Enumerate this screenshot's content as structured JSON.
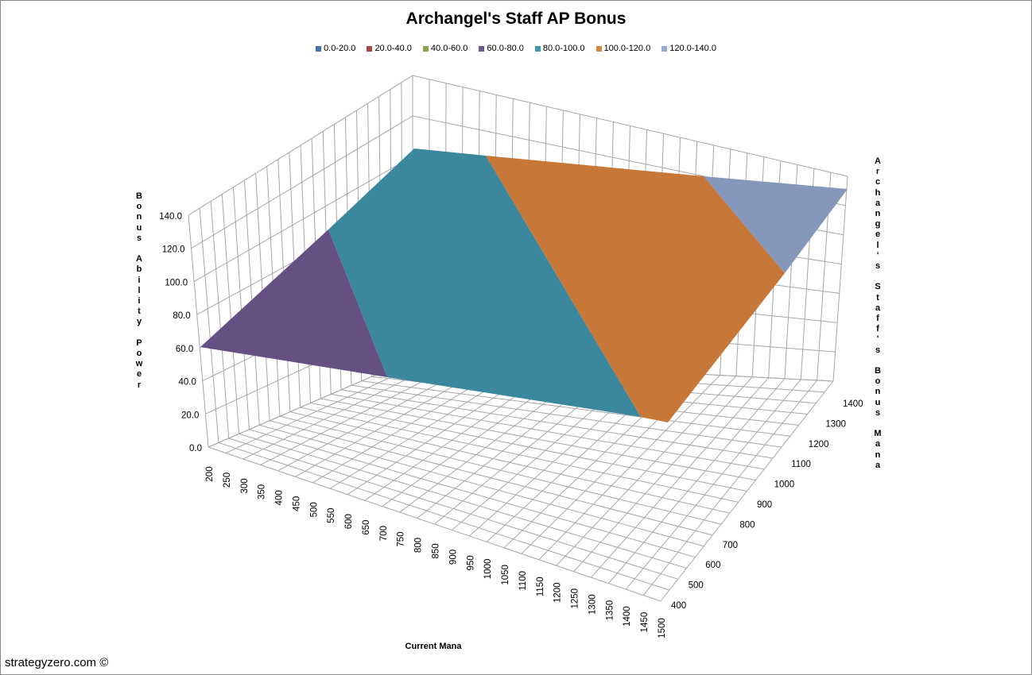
{
  "chart_data": {
    "type": "surface3d",
    "title": "Archangel's Staff AP Bonus",
    "xlabel": "Current Mana",
    "ylabel": "Archangel's Staff's Bonus Mana",
    "zlabel": "Bonus Ability Power",
    "x_ticks": [
      "200",
      "250",
      "300",
      "350",
      "400",
      "450",
      "500",
      "550",
      "600",
      "650",
      "700",
      "750",
      "800",
      "850",
      "900",
      "950",
      "1000",
      "1050",
      "1100",
      "1150",
      "1200",
      "1250",
      "1300",
      "1350",
      "1400",
      "1450",
      "1500"
    ],
    "y_ticks": [
      "400",
      "500",
      "600",
      "700",
      "800",
      "900",
      "1000",
      "1100",
      "1200",
      "1300",
      "1400"
    ],
    "z_ticks": [
      "0.0",
      "20.0",
      "40.0",
      "60.0",
      "80.0",
      "100.0",
      "120.0",
      "140.0"
    ],
    "zlim": [
      0,
      140
    ],
    "legend": [
      {
        "label": "0.0-20.0",
        "color": "#4572a7"
      },
      {
        "label": "20.0-40.0",
        "color": "#aa4643"
      },
      {
        "label": "40.0-60.0",
        "color": "#89a54e"
      },
      {
        "label": "60.0-80.0",
        "color": "#71588f"
      },
      {
        "label": "80.0-100.0",
        "color": "#4198af"
      },
      {
        "label": "100.0-120.0",
        "color": "#db843d"
      },
      {
        "label": "120.0-140.0",
        "color": "#93a9cf"
      }
    ],
    "surface_corners": [
      {
        "current_mana": 200,
        "bonus_mana": 400,
        "ap": 60
      },
      {
        "current_mana": 1500,
        "bonus_mana": 400,
        "ap": 88
      },
      {
        "current_mana": 200,
        "bonus_mana": 1400,
        "ap": 100
      },
      {
        "current_mana": 1500,
        "bonus_mana": 1400,
        "ap": 140
      }
    ],
    "legend_position": "top"
  },
  "footer": {
    "credit": "strategyzero.com ©"
  }
}
